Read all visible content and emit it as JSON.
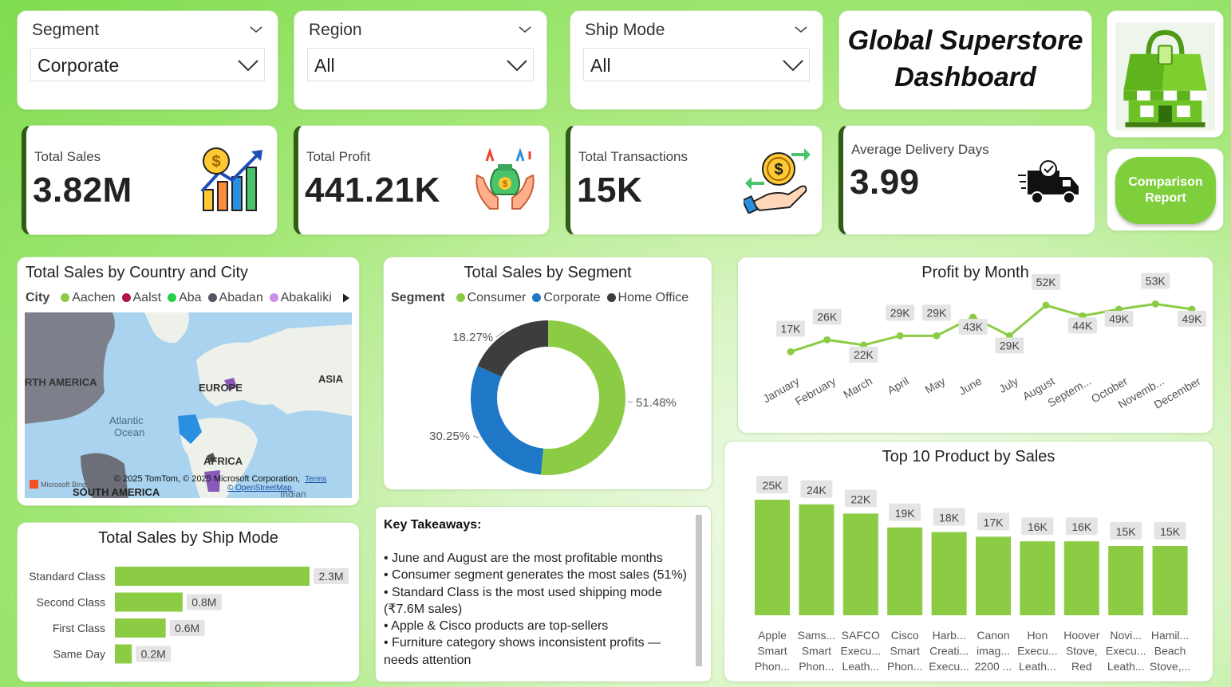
{
  "slicers": {
    "segment": {
      "label": "Segment",
      "value": "Corporate"
    },
    "region": {
      "label": "Region",
      "value": "All"
    },
    "ship_mode": {
      "label": "Ship Mode",
      "value": "All"
    }
  },
  "header": {
    "title_line1": "Global Superstore",
    "title_line2": "Dashboard"
  },
  "comparison_button": {
    "line1": "Comparison",
    "line2": "Report"
  },
  "kpis": {
    "total_sales": {
      "label": "Total Sales",
      "value": "3.82M",
      "icon": "sales-growth-icon"
    },
    "total_profit": {
      "label": "Total Profit",
      "value": "441.21K",
      "icon": "money-bag-hands-icon"
    },
    "total_transactions": {
      "label": "Total Transactions",
      "value": "15K",
      "icon": "transaction-exchange-icon"
    },
    "avg_delivery": {
      "label": "Average Delivery Days",
      "value": "3.99",
      "icon": "delivery-truck-icon"
    }
  },
  "map": {
    "title": "Total Sales by Country and City",
    "legend_title": "City",
    "legend": [
      {
        "name": "Aachen",
        "color": "#8ccc45"
      },
      {
        "name": "Aalst",
        "color": "#b0124a"
      },
      {
        "name": "Aba",
        "color": "#24d14a"
      },
      {
        "name": "Abadan",
        "color": "#555566"
      },
      {
        "name": "Abakaliki",
        "color": "#c98ee6"
      }
    ],
    "labels": {
      "north_america": "RTH AMERICA",
      "europe": "EUROPE",
      "asia": "ASIA",
      "atlantic_1": "Atlantic",
      "atlantic_2": "Ocean",
      "africa": "AFRICA",
      "south_america": "SOUTH AMERICA",
      "indian": "Indian"
    },
    "attribution": "© 2025 TomTom, © 2025 Microsoft Corporation,",
    "terms": "Terms",
    "osm": "© OpenStreetMap",
    "bing": "Microsoft Bing"
  },
  "segment_chart": {
    "title": "Total Sales by Segment",
    "legend_title": "Segment",
    "chart_data": {
      "type": "pie",
      "categories": [
        "Consumer",
        "Corporate",
        "Home Office"
      ],
      "values": [
        51.48,
        30.25,
        18.27
      ],
      "labels": [
        "51.48%",
        "30.25%",
        "18.27%"
      ],
      "colors": [
        "#8ccc45",
        "#1f77c8",
        "#3d3d3d"
      ]
    }
  },
  "profit_chart": {
    "title": "Profit by Month",
    "chart_data": {
      "type": "line",
      "categories": [
        "January",
        "February",
        "March",
        "April",
        "May",
        "June",
        "July",
        "August",
        "Septem...",
        "October",
        "Novemb...",
        "December"
      ],
      "values": [
        17,
        26,
        22,
        29,
        29,
        43,
        29,
        52,
        44,
        49,
        53,
        49
      ],
      "labels": [
        "17K",
        "26K",
        "22K",
        "29K",
        "29K",
        "43K",
        "29K",
        "52K",
        "44K",
        "49K",
        "53K",
        "49K"
      ],
      "color": "#8ccc45"
    }
  },
  "ship_chart": {
    "title": "Total Sales by Ship Mode",
    "chart_data": {
      "type": "bar",
      "categories": [
        "Standard Class",
        "Second Class",
        "First Class",
        "Same Day"
      ],
      "values": [
        2.3,
        0.8,
        0.6,
        0.2
      ],
      "labels": [
        "2.3M",
        "0.8M",
        "0.6M",
        "0.2M"
      ],
      "color": "#8ccc45"
    }
  },
  "takeaways": {
    "title": "Key Takeaways:",
    "lines": [
      "•  June and August are the most profitable months",
      "• Consumer segment generates the most sales (51%)",
      "• Standard Class is the most used shipping mode",
      "(₹7.6M sales)",
      "•  Apple & Cisco products are top-sellers",
      "• Furniture category shows inconsistent profits —",
      "needs attention"
    ]
  },
  "products_chart": {
    "title": "Top 10 Product by Sales",
    "chart_data": {
      "type": "bar",
      "categories": [
        [
          "Apple",
          "Smart",
          "Phon..."
        ],
        [
          "Sams...",
          "Smart",
          "Phon..."
        ],
        [
          "SAFCO",
          "Execu...",
          "Leath..."
        ],
        [
          "Cisco",
          "Smart",
          "Phon..."
        ],
        [
          "Harb...",
          "Creati...",
          "Execu..."
        ],
        [
          "Canon",
          "imag...",
          "2200 ..."
        ],
        [
          "Hon",
          "Execu...",
          "Leath..."
        ],
        [
          "Hoover",
          "Stove,",
          "Red"
        ],
        [
          "Novi...",
          "Execu...",
          "Leath..."
        ],
        [
          "Hamil...",
          "Beach",
          "Stove,..."
        ]
      ],
      "values": [
        25,
        24,
        22,
        19,
        18,
        17,
        16,
        16,
        15,
        15
      ],
      "labels": [
        "25K",
        "24K",
        "22K",
        "19K",
        "18K",
        "17K",
        "16K",
        "16K",
        "15K",
        "15K"
      ],
      "color": "#8ccc45"
    }
  }
}
